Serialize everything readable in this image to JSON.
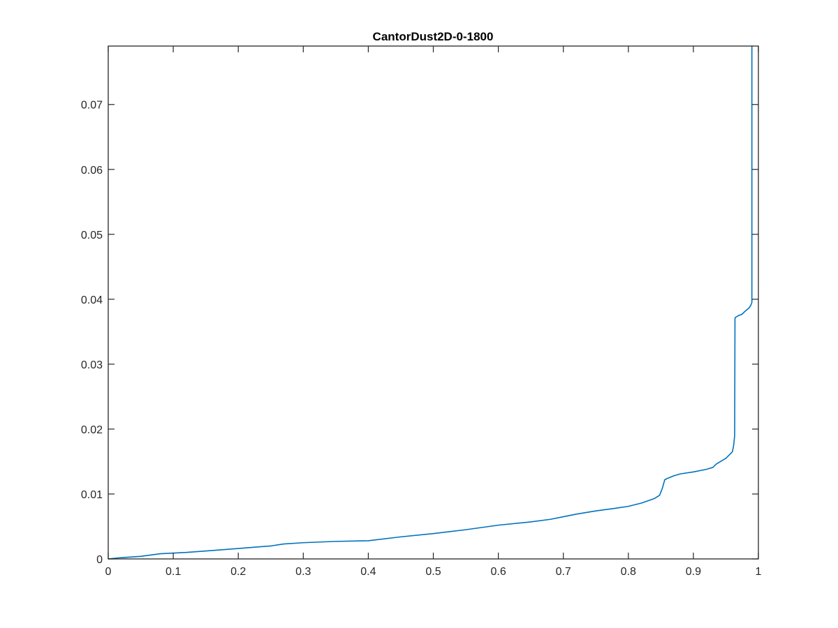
{
  "colors": {
    "series": "#0072bd",
    "axis": "#262626",
    "background": "#ffffff"
  },
  "chart_data": {
    "type": "line",
    "title": "CantorDust2D-0-1800",
    "xlabel": "",
    "ylabel": "",
    "xlim": [
      0,
      1
    ],
    "ylim": [
      0,
      0.079
    ],
    "grid": false,
    "legend": "none",
    "x_ticks": [
      0,
      0.1,
      0.2,
      0.3,
      0.4,
      0.5,
      0.6,
      0.7,
      0.8,
      0.9,
      1
    ],
    "x_tick_labels": [
      "0",
      "0.1",
      "0.2",
      "0.3",
      "0.4",
      "0.5",
      "0.6",
      "0.7",
      "0.8",
      "0.9",
      "1"
    ],
    "y_ticks": [
      0,
      0.01,
      0.02,
      0.03,
      0.04,
      0.05,
      0.06,
      0.07
    ],
    "y_tick_labels": [
      "0",
      "0.01",
      "0.02",
      "0.03",
      "0.04",
      "0.05",
      "0.06",
      "0.07"
    ],
    "series": [
      {
        "x": [
          0,
          0.02,
          0.05,
          0.08,
          0.12,
          0.16,
          0.2,
          0.25,
          0.27,
          0.3,
          0.35,
          0.4,
          0.45,
          0.5,
          0.55,
          0.6,
          0.65,
          0.68,
          0.7,
          0.72,
          0.75,
          0.78,
          0.8,
          0.82,
          0.84,
          0.848,
          0.852,
          0.856,
          0.86,
          0.87,
          0.88,
          0.9,
          0.92,
          0.93,
          0.935,
          0.95,
          0.96,
          0.962,
          0.9635,
          0.964,
          0.9645,
          0.97,
          0.975,
          0.98,
          0.985,
          0.988,
          0.99,
          0.99,
          0.991
        ],
        "y": [
          0,
          0.0002,
          0.0004,
          0.0008,
          0.001,
          0.0013,
          0.0016,
          0.002,
          0.0023,
          0.0025,
          0.0027,
          0.0028,
          0.0034,
          0.0039,
          0.0045,
          0.0052,
          0.0057,
          0.0061,
          0.0065,
          0.0069,
          0.0074,
          0.0078,
          0.0081,
          0.0086,
          0.0093,
          0.0098,
          0.0108,
          0.0122,
          0.0124,
          0.0128,
          0.0131,
          0.0134,
          0.0138,
          0.0141,
          0.0146,
          0.0155,
          0.0165,
          0.0175,
          0.019,
          0.037,
          0.0372,
          0.0375,
          0.0377,
          0.0382,
          0.0386,
          0.039,
          0.0395,
          0.079,
          0.079
        ]
      }
    ]
  }
}
